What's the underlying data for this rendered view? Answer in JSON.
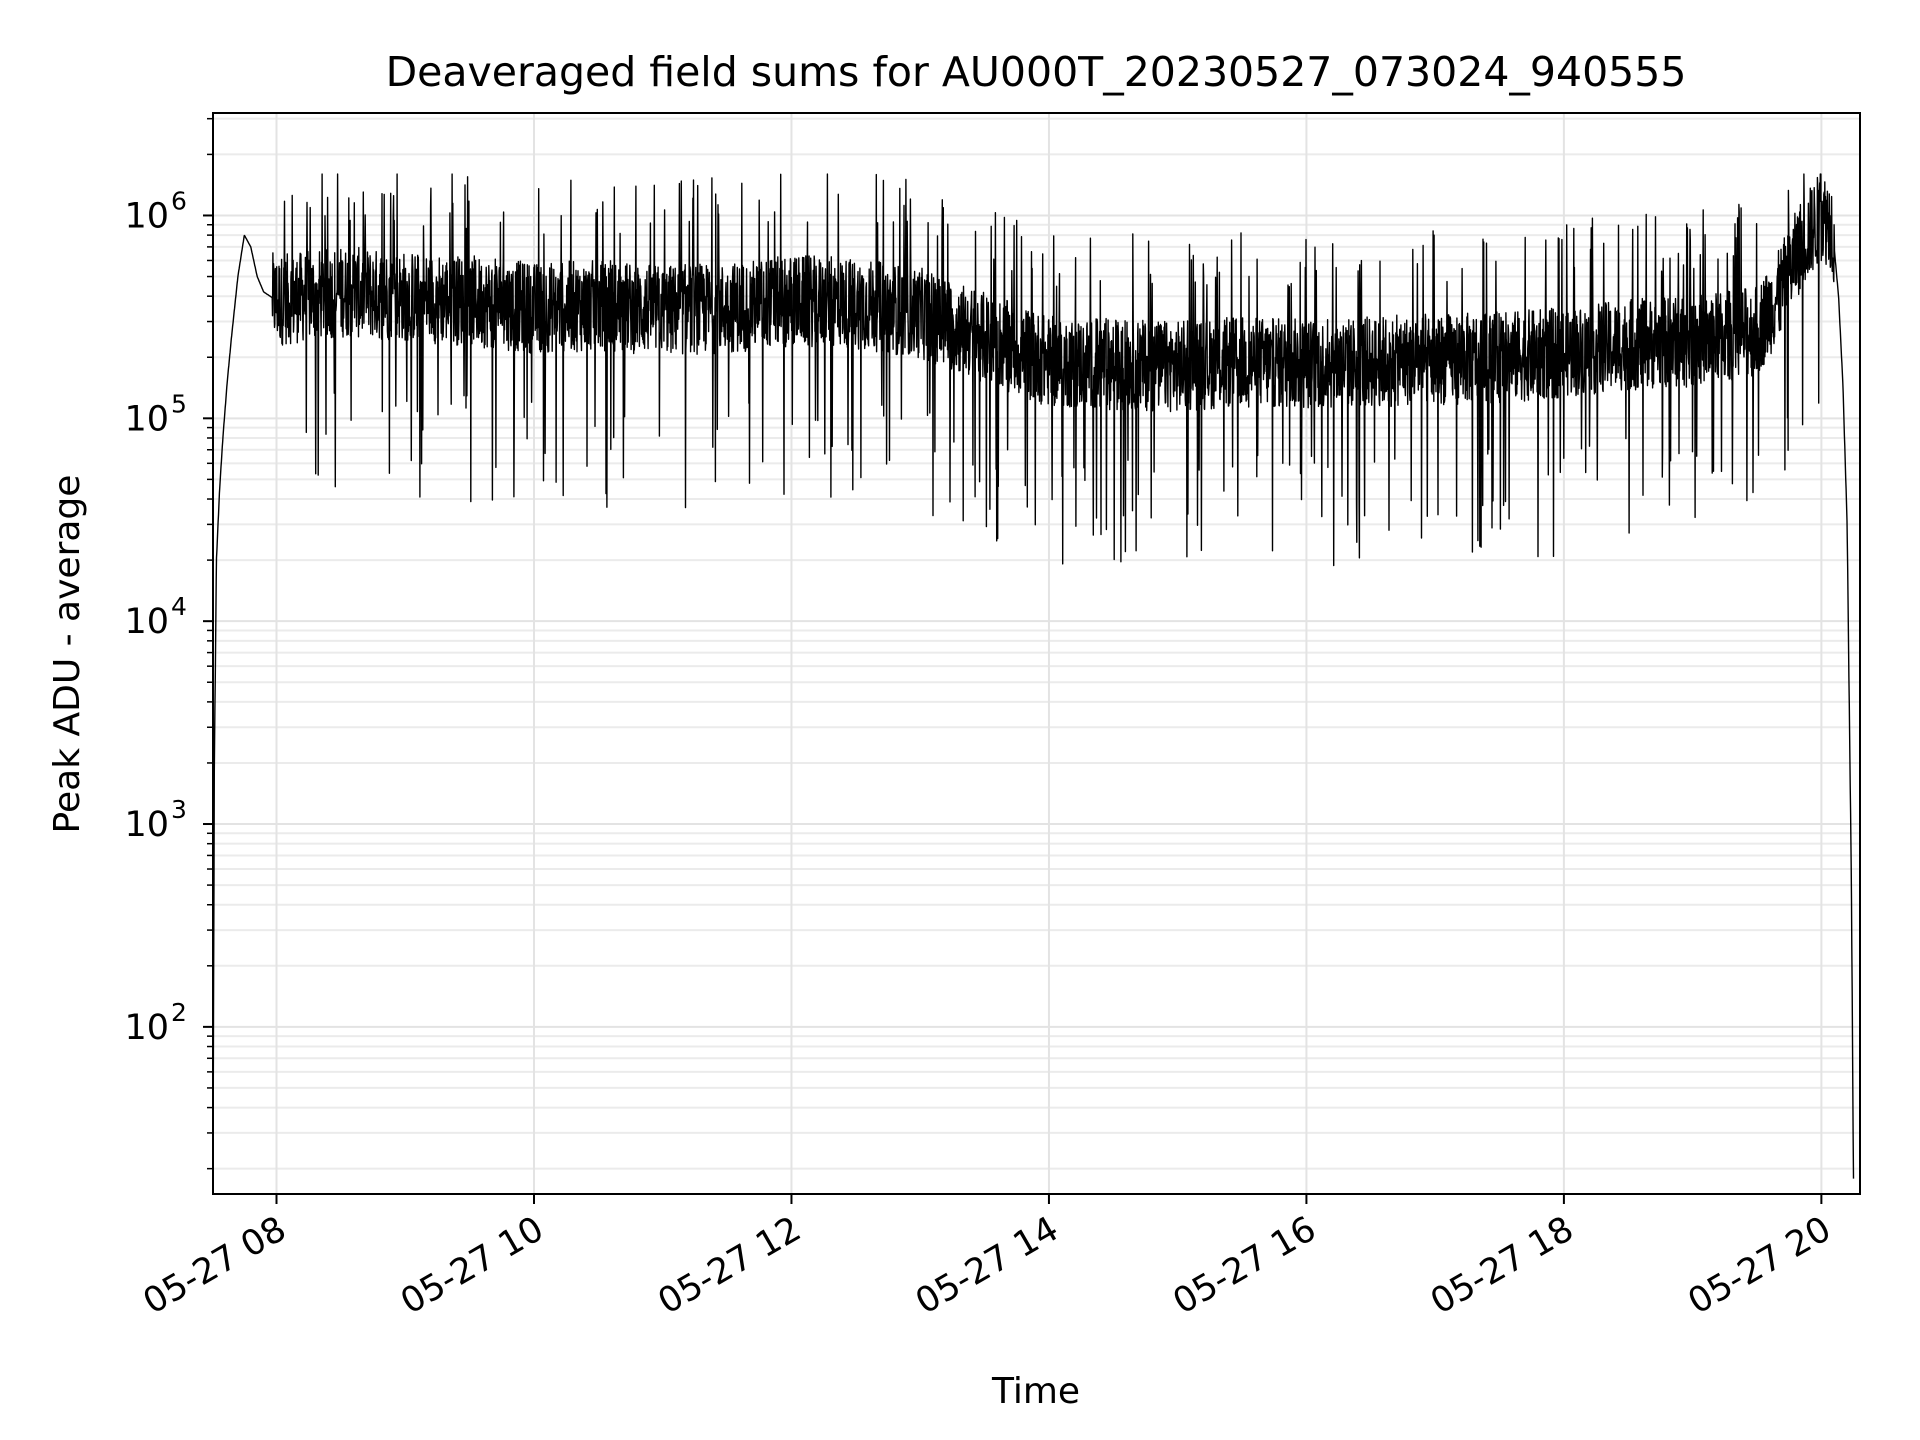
{
  "chart_data": {
    "type": "line",
    "title": "Deaveraged field sums for AU000T_20230527_073024_940555",
    "xlabel": "Time",
    "ylabel": "Peak ADU - average",
    "xlim": [
      "2023-05-27T07:30:24",
      "2023-05-27T20:18:00"
    ],
    "ylim": [
      15,
      3200000
    ],
    "yscale": "log",
    "grid": true,
    "x_ticks": [
      {
        "value": "2023-05-27T08:00",
        "label": "05-27 08"
      },
      {
        "value": "2023-05-27T10:00",
        "label": "05-27 10"
      },
      {
        "value": "2023-05-27T12:00",
        "label": "05-27 12"
      },
      {
        "value": "2023-05-27T14:00",
        "label": "05-27 14"
      },
      {
        "value": "2023-05-27T16:00",
        "label": "05-27 16"
      },
      {
        "value": "2023-05-27T18:00",
        "label": "05-27 18"
      },
      {
        "value": "2023-05-27T20:00",
        "label": "05-27 20"
      }
    ],
    "y_ticks": [
      {
        "value": 100,
        "base": "10",
        "exp": "2"
      },
      {
        "value": 1000,
        "base": "10",
        "exp": "3"
      },
      {
        "value": 10000,
        "base": "10",
        "exp": "4"
      },
      {
        "value": 100000,
        "base": "10",
        "exp": "5"
      },
      {
        "value": 1000000,
        "base": "10",
        "exp": "6"
      }
    ],
    "series": [
      {
        "color": "#000000",
        "x": [
          "2023-05-27T07:30:24",
          "2023-05-27T07:31:00",
          "2023-05-27T07:32:00",
          "2023-05-27T07:33:30",
          "2023-05-27T07:35:00",
          "2023-05-27T07:37:00",
          "2023-05-27T07:39:00",
          "2023-05-27T07:42:00",
          "2023-05-27T07:45:00",
          "2023-05-27T07:48:00",
          "2023-05-27T07:51:00",
          "2023-05-27T07:54:00",
          "2023-05-27T07:57:00",
          "2023-05-27T08:00:00",
          "2023-05-27T08:30:00",
          "2023-05-27T09:00:00",
          "2023-05-27T09:30:00",
          "2023-05-27T10:00:00",
          "2023-05-27T10:30:00",
          "2023-05-27T11:00:00",
          "2023-05-27T11:30:00",
          "2023-05-27T12:00:00",
          "2023-05-27T12:30:00",
          "2023-05-27T13:00:00",
          "2023-05-27T13:30:00",
          "2023-05-27T14:00:00",
          "2023-05-27T14:30:00",
          "2023-05-27T15:00:00",
          "2023-05-27T15:30:00",
          "2023-05-27T16:00:00",
          "2023-05-27T16:30:00",
          "2023-05-27T17:00:00",
          "2023-05-27T17:30:00",
          "2023-05-27T18:00:00",
          "2023-05-27T18:30:00",
          "2023-05-27T19:00:00",
          "2023-05-27T19:30:00",
          "2023-05-27T19:40:00",
          "2023-05-27T19:50:00",
          "2023-05-27T20:00:00",
          "2023-05-27T20:05:00",
          "2023-05-27T20:08:00",
          "2023-05-27T20:10:00",
          "2023-05-27T20:12:00",
          "2023-05-27T20:14:00",
          "2023-05-27T20:15:00"
        ],
        "y": [
          15,
          1800,
          20000,
          45000,
          80000,
          150000,
          250000,
          500000,
          800000,
          700000,
          500000,
          420000,
          400000,
          380000,
          420000,
          400000,
          380000,
          350000,
          360000,
          340000,
          350000,
          380000,
          370000,
          330000,
          250000,
          190000,
          185000,
          180000,
          190000,
          185000,
          190000,
          195000,
          200000,
          210000,
          230000,
          240000,
          270000,
          400000,
          700000,
          1000000,
          900000,
          400000,
          150000,
          30000,
          500,
          15
        ],
        "noise": {
          "high": 1600000,
          "low": 15000
        }
      }
    ]
  }
}
